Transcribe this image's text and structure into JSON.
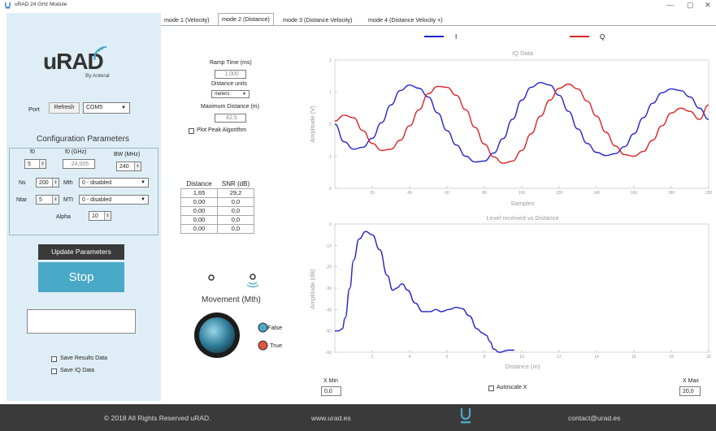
{
  "window": {
    "title": "uRAD 24 GHz Module",
    "minimize": "—",
    "maximize": "▢",
    "close": "✕"
  },
  "brand": {
    "logo": "uRAD",
    "byline": "By Anteral"
  },
  "port": {
    "label": "Port",
    "refresh_label": "Refresh",
    "value": "COM5"
  },
  "config": {
    "title": "Configuration Parameters",
    "f0_label": "f0",
    "f0_value": "5",
    "f0ghz_label": "f0 (GHz)",
    "f0ghz_value": "24,005",
    "bw_label": "BW (MHz)",
    "bw_value": "240",
    "ns_label": "Ns",
    "ns_value": "200",
    "mth_label": "Mth",
    "mth_value": "0 - disabled",
    "ntar_label": "Ntar",
    "ntar_value": "5",
    "mti_label": "MTI",
    "mti_value": "0 - disabled",
    "alpha_label": "Alpha",
    "alpha_value": "10"
  },
  "buttons": {
    "update": "Update Parameters",
    "stop": "Stop"
  },
  "save": {
    "results_label": "Save Results Data",
    "iq_label": "Save IQ Data"
  },
  "tabs": [
    {
      "label": "mode 1 (Velocity)"
    },
    {
      "label": "mode 2 (Distance)"
    },
    {
      "label": "mode 3 (Distance Velocity)"
    },
    {
      "label": "mode 4 (Distance Velocity +)"
    }
  ],
  "settings": {
    "ramp_label": "Ramp Time (ms)",
    "ramp_value": "1,000",
    "units_label": "Distance units",
    "units_value": "meters",
    "maxdist_label": "Maximum Distance (m)",
    "maxdist_value": "62,5",
    "peak_label": "Plot Peak Algorithm"
  },
  "results": {
    "headers": [
      "Distance",
      "SNR (dB)"
    ],
    "rows": [
      [
        "1,65",
        "29,2"
      ],
      [
        "0,00",
        "0,0"
      ],
      [
        "0,00",
        "0,0"
      ],
      [
        "0,00",
        "0,0"
      ],
      [
        "0,00",
        "0,0"
      ]
    ]
  },
  "movement": {
    "title": "Movement (Mth)",
    "false_label": "False",
    "true_label": "True"
  },
  "xcontrols": {
    "xmin_label": "X Min",
    "xmin_value": "0,0",
    "autoscale_label": "Autoscale X",
    "xmax_label": "X Max",
    "xmax_value": "20,0"
  },
  "footer": {
    "copyright": "© 2018 All Rights Reserved uRAD.",
    "web": "www.urad.es",
    "contact": "contact@urad.es"
  },
  "colors": {
    "I": "#2222cc",
    "Q": "#dd2222",
    "stop": "#4aa8c7",
    "panel": "#dfeef6"
  },
  "chart_data": [
    {
      "type": "line",
      "title": "IQ Data",
      "xlabel": "Samples",
      "ylabel": "Amplitude (V)",
      "xlim": [
        0,
        200
      ],
      "ylim": [
        -2,
        2
      ],
      "xticks": [
        "20",
        "40",
        "60",
        "80",
        "100",
        "120",
        "140",
        "160",
        "180",
        "200"
      ],
      "yticks": [
        "2",
        "1",
        "0",
        "-1",
        "-2"
      ],
      "legend": "top",
      "series": [
        {
          "name": "I",
          "x": [
            0,
            5,
            10,
            15,
            20,
            25,
            30,
            35,
            40,
            45,
            50,
            55,
            60,
            65,
            70,
            75,
            80,
            85,
            90,
            95,
            100,
            105,
            110,
            115,
            120,
            125,
            130,
            135,
            140,
            145,
            150,
            155,
            160,
            165,
            170,
            175,
            180,
            185,
            190,
            195,
            200
          ],
          "y": [
            0.0,
            -0.55,
            -0.78,
            -0.72,
            -0.44,
            0.05,
            0.6,
            1.05,
            1.22,
            1.12,
            0.85,
            0.35,
            -0.2,
            -0.65,
            -1.0,
            -1.18,
            -1.15,
            -0.9,
            -0.45,
            0.15,
            0.75,
            1.15,
            1.3,
            1.22,
            0.9,
            0.4,
            -0.15,
            -0.6,
            -0.88,
            -0.98,
            -0.92,
            -0.7,
            -0.3,
            0.2,
            0.65,
            0.98,
            1.1,
            1.05,
            0.85,
            0.5,
            0.15
          ]
        },
        {
          "name": "Q",
          "x": [
            0,
            5,
            10,
            15,
            20,
            25,
            30,
            35,
            40,
            45,
            50,
            55,
            60,
            65,
            70,
            75,
            80,
            85,
            90,
            95,
            100,
            105,
            110,
            115,
            120,
            125,
            130,
            135,
            140,
            145,
            150,
            155,
            160,
            165,
            170,
            175,
            180,
            185,
            190,
            195,
            200
          ],
          "y": [
            0.1,
            0.28,
            0.2,
            -0.2,
            -0.6,
            -0.82,
            -0.78,
            -0.5,
            -0.05,
            0.45,
            0.95,
            1.18,
            1.15,
            0.9,
            0.45,
            -0.1,
            -0.62,
            -1.02,
            -1.22,
            -1.15,
            -0.82,
            -0.3,
            0.25,
            0.75,
            1.12,
            1.25,
            1.1,
            0.72,
            0.25,
            -0.25,
            -0.68,
            -0.95,
            -1.0,
            -0.85,
            -0.5,
            -0.05,
            0.35,
            0.5,
            0.4,
            0.15,
            0.6
          ]
        }
      ]
    },
    {
      "type": "line",
      "title": "Level received vs Distance",
      "xlabel": "Distance (m)",
      "ylabel": "Amplitude (dB)",
      "xlim": [
        0,
        20
      ],
      "ylim": [
        -60,
        0
      ],
      "xticks": [
        "2",
        "4",
        "6",
        "8",
        "10",
        "12",
        "14",
        "16",
        "18",
        "20"
      ],
      "yticks": [
        "0",
        "-10",
        "-20",
        "-30",
        "-40",
        "-50",
        "-60"
      ],
      "series": [
        {
          "name": "",
          "x": [
            0.0,
            0.2,
            0.4,
            0.55,
            0.8,
            1.0,
            1.3,
            1.65,
            2.0,
            2.4,
            2.8,
            3.1,
            3.3,
            3.6,
            3.9,
            4.3,
            4.7,
            5.1,
            5.4,
            5.7,
            6.1,
            6.5,
            6.8,
            7.2,
            7.6,
            7.9,
            8.1,
            8.3,
            8.5,
            8.8,
            9.3,
            9.6
          ],
          "y": [
            -50.0,
            -50.0,
            -49.0,
            -44.0,
            -30.0,
            -17.0,
            -7.0,
            -3.5,
            -5.0,
            -12.0,
            -24.0,
            -31.0,
            -30.0,
            -28.0,
            -31.0,
            -37.0,
            -41.0,
            -41.0,
            -40.0,
            -41.0,
            -40.0,
            -39.0,
            -39.5,
            -43.0,
            -49.0,
            -51.0,
            -52.0,
            -55.0,
            -58.5,
            -60.0,
            -59.0,
            -59.0
          ]
        }
      ]
    }
  ]
}
